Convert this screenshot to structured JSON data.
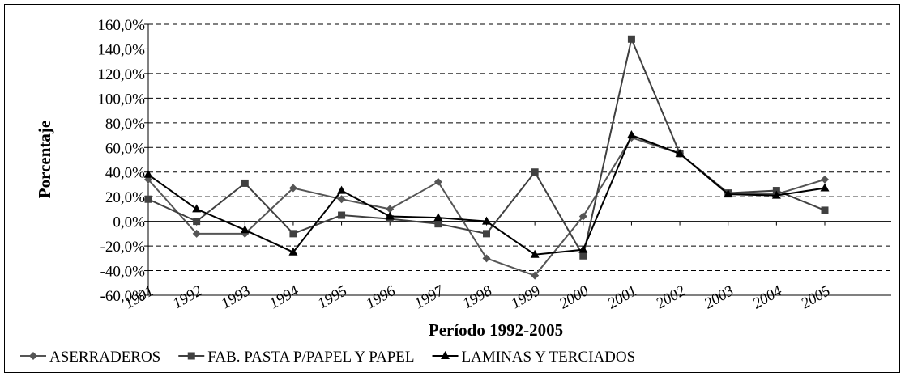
{
  "chart_data": {
    "type": "line",
    "y_label": "Porcentaje",
    "x_label": "Período 1992-2005",
    "categories": [
      "1991",
      "1992",
      "1993",
      "1994",
      "1995",
      "1996",
      "1997",
      "1998",
      "1999",
      "2000",
      "2001",
      "2002",
      "2003",
      "2004",
      "2005"
    ],
    "series": [
      {
        "name": "ASERRADEROS",
        "color": "#555555",
        "marker": "diamond",
        "values": [
          34,
          -10,
          -10,
          27,
          18,
          10,
          32,
          -30,
          -44,
          4,
          68,
          55,
          23,
          22,
          34
        ]
      },
      {
        "name": "FAB. PASTA P/PAPEL Y PAPEL",
        "color": "#404040",
        "marker": "square",
        "values": [
          18,
          0,
          31,
          -10,
          5,
          2,
          -2,
          -10,
          40,
          -28,
          148,
          55,
          23,
          25,
          9
        ]
      },
      {
        "name": "LAMINAS Y TERCIADOS",
        "color": "#000000",
        "marker": "triangle",
        "values": [
          38,
          10,
          -7,
          -25,
          25,
          4,
          3,
          0,
          -27,
          -23,
          70,
          55,
          22,
          21,
          27
        ]
      }
    ],
    "ylim": [
      -60,
      160
    ],
    "yticks": [
      {
        "value": -60,
        "label": "-60,0%"
      },
      {
        "value": -40,
        "label": "-40,0%"
      },
      {
        "value": -20,
        "label": "-20,0%"
      },
      {
        "value": 0,
        "label": "0,0%"
      },
      {
        "value": 20,
        "label": "20,0%"
      },
      {
        "value": 40,
        "label": "40,0%"
      },
      {
        "value": 60,
        "label": "60,0%"
      },
      {
        "value": 80,
        "label": "80,0%"
      },
      {
        "value": 100,
        "label": "100,0%"
      },
      {
        "value": 120,
        "label": "120,0%"
      },
      {
        "value": 140,
        "label": "140,0%"
      },
      {
        "value": 160,
        "label": "160,0%"
      }
    ],
    "grid": true
  }
}
